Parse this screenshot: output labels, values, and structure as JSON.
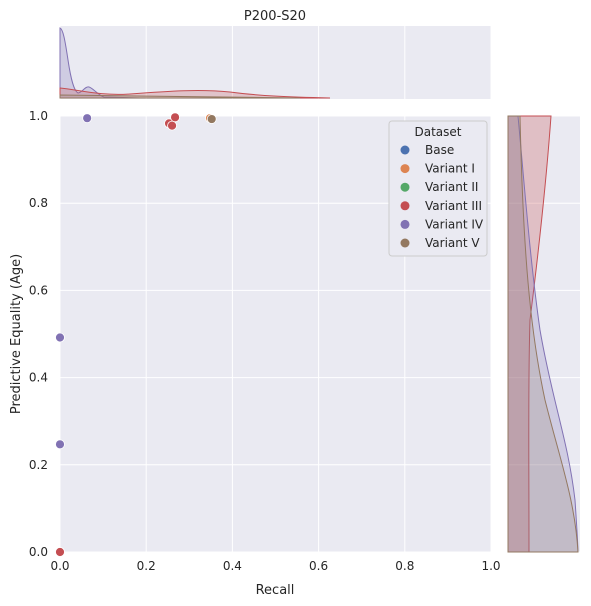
{
  "chart_data": {
    "type": "scatter",
    "title": "P200-S20",
    "xlabel": "Recall",
    "ylabel": "Predictive Equality (Age)",
    "xlim": [
      0,
      1
    ],
    "ylim": [
      0,
      1
    ],
    "xticks": [
      "0.0",
      "0.2",
      "0.4",
      "0.6",
      "0.8",
      "1.0"
    ],
    "yticks": [
      "0.0",
      "0.2",
      "0.4",
      "0.6",
      "0.8",
      "1.0"
    ],
    "grid": true,
    "legend": {
      "title": "Dataset",
      "placement": "top-right"
    },
    "series": [
      {
        "name": "Base",
        "color": "#4c72b0",
        "points": [
          [
            0.0,
            0.0
          ]
        ]
      },
      {
        "name": "Variant I",
        "color": "#dd8452",
        "points": [
          [
            0.348,
            0.995
          ]
        ]
      },
      {
        "name": "Variant II",
        "color": "#55a868",
        "points": [
          [
            0.0,
            0.0
          ]
        ]
      },
      {
        "name": "Variant III",
        "color": "#c44e52",
        "points": [
          [
            0.0,
            0.0
          ],
          [
            0.253,
            0.983
          ],
          [
            0.26,
            0.978
          ],
          [
            0.267,
            0.997
          ]
        ]
      },
      {
        "name": "Variant IV",
        "color": "#8172b3",
        "points": [
          [
            0.0,
            0.492
          ],
          [
            0.0,
            0.247
          ],
          [
            0.063,
            0.995
          ]
        ]
      },
      {
        "name": "Variant V",
        "color": "#937860",
        "points": [
          [
            0.352,
            0.993
          ]
        ]
      }
    ]
  }
}
